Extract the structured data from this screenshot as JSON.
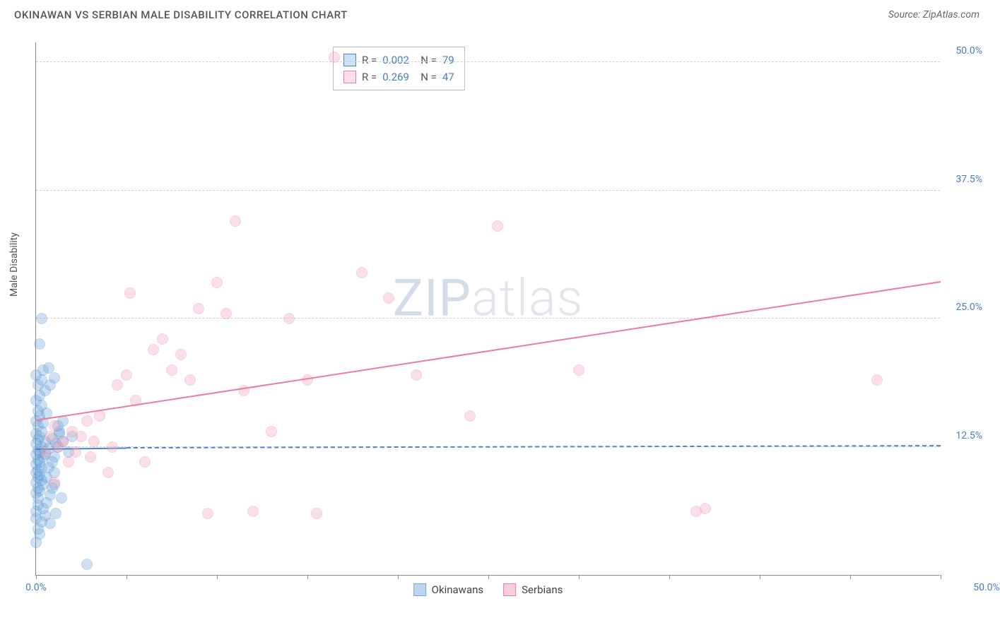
{
  "header": {
    "title": "OKINAWAN VS SERBIAN MALE DISABILITY CORRELATION CHART",
    "source": "Source: ZipAtlas.com"
  },
  "watermark": {
    "zip": "ZIP",
    "atlas": "atlas"
  },
  "chart": {
    "type": "scatter",
    "ylabel": "Male Disability",
    "background_color": "#ffffff",
    "grid_color": "#d0d0d0",
    "axis_color": "#888888",
    "tick_label_color": "#4a7ebb",
    "tick_fontsize": 14,
    "label_fontsize": 14,
    "xlim": [
      0,
      50
    ],
    "ylim": [
      0,
      52
    ],
    "xticks": [
      0,
      5,
      10,
      15,
      20,
      25,
      30,
      35,
      40,
      45,
      50
    ],
    "xtick_labels": {
      "0": "0.0%",
      "50": "50.0%"
    },
    "yticks": [
      12.5,
      25.0,
      37.5,
      50.0
    ],
    "ytick_labels": [
      "12.5%",
      "25.0%",
      "37.5%",
      "50.0%"
    ],
    "marker_radius": 8,
    "marker_fill_opacity": 0.35,
    "marker_stroke_width": 1.5,
    "series": [
      {
        "name": "Okinawans",
        "color": "#6fa8dc",
        "stroke": "#4a86c5",
        "R": "0.002",
        "N": "79",
        "trend": {
          "x1": 0,
          "y1": 12.2,
          "x2": 5,
          "y2": 12.3,
          "width": 2,
          "solid": true
        },
        "trend_ext": {
          "x1": 5,
          "y1": 12.3,
          "x2": 50,
          "y2": 12.5,
          "width": 2,
          "solid": false
        },
        "points": [
          [
            0.0,
            3.2
          ],
          [
            0.0,
            5.5
          ],
          [
            0.0,
            6.2
          ],
          [
            0.1,
            6.8
          ],
          [
            0.1,
            7.5
          ],
          [
            0.0,
            8.0
          ],
          [
            0.2,
            8.2
          ],
          [
            0.1,
            8.5
          ],
          [
            0.0,
            9.0
          ],
          [
            0.3,
            9.2
          ],
          [
            0.1,
            9.5
          ],
          [
            0.2,
            9.8
          ],
          [
            0.0,
            10.0
          ],
          [
            0.1,
            10.2
          ],
          [
            0.3,
            10.5
          ],
          [
            0.0,
            10.8
          ],
          [
            0.2,
            11.0
          ],
          [
            0.1,
            11.2
          ],
          [
            0.4,
            11.5
          ],
          [
            0.0,
            11.8
          ],
          [
            0.2,
            12.0
          ],
          [
            0.1,
            12.2
          ],
          [
            0.3,
            12.5
          ],
          [
            0.0,
            12.8
          ],
          [
            0.5,
            13.0
          ],
          [
            0.1,
            13.2
          ],
          [
            0.2,
            13.5
          ],
          [
            0.0,
            13.8
          ],
          [
            0.3,
            14.0
          ],
          [
            0.1,
            14.5
          ],
          [
            0.4,
            14.8
          ],
          [
            0.0,
            15.0
          ],
          [
            0.2,
            15.5
          ],
          [
            0.6,
            15.8
          ],
          [
            0.1,
            16.0
          ],
          [
            0.3,
            16.5
          ],
          [
            0.0,
            17.0
          ],
          [
            0.2,
            17.5
          ],
          [
            0.5,
            18.0
          ],
          [
            0.1,
            18.5
          ],
          [
            0.8,
            18.5
          ],
          [
            0.3,
            19.0
          ],
          [
            1.0,
            19.2
          ],
          [
            0.0,
            19.5
          ],
          [
            0.4,
            20.0
          ],
          [
            0.7,
            20.2
          ],
          [
            1.2,
            12.5
          ],
          [
            1.5,
            13.0
          ],
          [
            1.0,
            11.5
          ],
          [
            1.3,
            14.0
          ],
          [
            1.8,
            12.0
          ],
          [
            2.0,
            13.5
          ],
          [
            0.2,
            22.5
          ],
          [
            0.3,
            25.0
          ],
          [
            0.8,
            5.0
          ],
          [
            1.1,
            6.0
          ],
          [
            1.4,
            7.5
          ],
          [
            0.9,
            8.5
          ],
          [
            0.1,
            4.5
          ],
          [
            0.5,
            5.8
          ],
          [
            2.8,
            1.0
          ],
          [
            0.6,
            9.5
          ],
          [
            0.7,
            10.5
          ],
          [
            0.9,
            11.0
          ],
          [
            1.1,
            12.8
          ],
          [
            1.3,
            13.8
          ],
          [
            0.4,
            6.5
          ],
          [
            0.6,
            7.0
          ],
          [
            0.8,
            7.8
          ],
          [
            1.0,
            8.8
          ],
          [
            0.2,
            4.0
          ],
          [
            0.3,
            5.2
          ],
          [
            0.5,
            11.8
          ],
          [
            0.7,
            12.3
          ],
          [
            0.9,
            13.3
          ],
          [
            1.2,
            14.5
          ],
          [
            1.5,
            15.0
          ],
          [
            1.0,
            10.0
          ],
          [
            0.4,
            8.8
          ]
        ]
      },
      {
        "name": "Serbians",
        "color": "#f4a6b8",
        "stroke": "#ec7d96",
        "R": "0.269",
        "N": "47",
        "trend": {
          "x1": 0,
          "y1": 15.0,
          "x2": 50,
          "y2": 28.5,
          "width": 2,
          "solid": true
        },
        "points": [
          [
            0.5,
            12.0
          ],
          [
            0.8,
            13.5
          ],
          [
            1.0,
            14.5
          ],
          [
            1.2,
            12.5
          ],
          [
            1.5,
            13.0
          ],
          [
            1.8,
            11.0
          ],
          [
            2.0,
            14.0
          ],
          [
            2.2,
            12.0
          ],
          [
            2.5,
            13.5
          ],
          [
            2.8,
            15.0
          ],
          [
            3.0,
            11.5
          ],
          [
            3.2,
            13.0
          ],
          [
            3.5,
            15.5
          ],
          [
            4.0,
            10.0
          ],
          [
            4.2,
            12.5
          ],
          [
            4.5,
            18.5
          ],
          [
            5.0,
            19.5
          ],
          [
            5.2,
            27.5
          ],
          [
            5.5,
            17.0
          ],
          [
            6.0,
            11.0
          ],
          [
            6.5,
            22.0
          ],
          [
            7.0,
            23.0
          ],
          [
            7.5,
            20.0
          ],
          [
            8.0,
            21.5
          ],
          [
            8.5,
            19.0
          ],
          [
            9.0,
            26.0
          ],
          [
            9.5,
            6.0
          ],
          [
            10.0,
            28.5
          ],
          [
            10.5,
            25.5
          ],
          [
            11.0,
            34.5
          ],
          [
            11.5,
            18.0
          ],
          [
            12.0,
            6.2
          ],
          [
            13.0,
            14.0
          ],
          [
            14.0,
            25.0
          ],
          [
            15.0,
            19.0
          ],
          [
            15.5,
            6.0
          ],
          [
            16.5,
            50.5
          ],
          [
            18.0,
            29.5
          ],
          [
            19.5,
            27.0
          ],
          [
            21.0,
            19.5
          ],
          [
            24.0,
            15.5
          ],
          [
            25.5,
            34.0
          ],
          [
            30.0,
            20.0
          ],
          [
            36.5,
            6.2
          ],
          [
            37.0,
            6.5
          ],
          [
            46.5,
            19.0
          ],
          [
            1.0,
            9.0
          ]
        ]
      }
    ],
    "legend_bottom": [
      {
        "label": "Okinawans",
        "fill": "#bcd6f0",
        "stroke": "#6fa8dc"
      },
      {
        "label": "Serbians",
        "fill": "#f9d0da",
        "stroke": "#ec7d96"
      }
    ]
  }
}
